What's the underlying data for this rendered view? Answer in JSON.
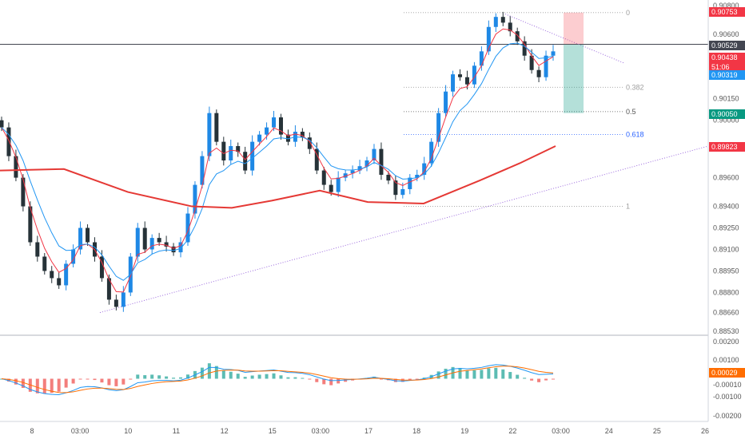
{
  "chart_data": {
    "type": "candlestick",
    "symbol_pair_hint": "",
    "price_axis": {
      "ticks": [
        "0.90800",
        "0.90600",
        "0.90450",
        "0.90150",
        "0.90000",
        "0.89800",
        "0.89600",
        "0.89400",
        "0.89250",
        "0.89100",
        "0.88950",
        "0.88800",
        "0.88660",
        "0.88530"
      ],
      "range": [
        0.8853,
        0.9081
      ]
    },
    "time_axis": {
      "labels": [
        "8",
        "03:00",
        "10",
        "11",
        "12",
        "15",
        "03:00",
        "17",
        "18",
        "19",
        "22",
        "03:00",
        "24",
        "25",
        "26"
      ]
    },
    "price_tags": [
      {
        "value": "0.90753",
        "color": "#f23645"
      },
      {
        "value": "0.90529",
        "color": "#434651"
      },
      {
        "value": "0.90438",
        "color": "#f23645"
      },
      {
        "value": "51:06",
        "color": "#f23645"
      },
      {
        "value": "0.90319",
        "color": "#2196f3"
      },
      {
        "value": "0.90050",
        "color": "#089981"
      },
      {
        "value": "0.89823",
        "color": "#f23645"
      }
    ],
    "fib_levels": [
      {
        "label": "0",
        "price": 0.9075,
        "color": "#9e9e9e"
      },
      {
        "label": "0.382",
        "price": 0.9023,
        "color": "#9e9e9e"
      },
      {
        "label": "0.5",
        "price": 0.9006,
        "color": "#555555"
      },
      {
        "label": "0.618",
        "price": 0.899,
        "color": "#2962ff"
      },
      {
        "label": "1",
        "price": 0.894,
        "color": "#9e9e9e"
      }
    ],
    "horizontal_line": 0.90529,
    "macd_axis": {
      "ticks": [
        "0.00200",
        "0.00100",
        "-0.00010",
        "-0.00100",
        "-0.00200"
      ],
      "tag": {
        "value": "0.00029",
        "color": "#ff6d00"
      },
      "range": [
        -0.0023,
        0.0023
      ]
    },
    "series": {
      "ema_fast_color": "#f23645",
      "ema_mid_color": "#2196f3",
      "ema_slow_color": "#e53935",
      "up_color": "#1e88e5",
      "down_color": "#263238",
      "trendline_color": "#9c6ade"
    },
    "close_path": [
      0.8995,
      0.8975,
      0.896,
      0.894,
      0.8915,
      0.8905,
      0.8895,
      0.889,
      0.8885,
      0.89,
      0.891,
      0.8925,
      0.8915,
      0.8905,
      0.889,
      0.8875,
      0.887,
      0.888,
      0.8905,
      0.8925,
      0.891,
      0.8918,
      0.8915,
      0.8912,
      0.8908,
      0.8915,
      0.8935,
      0.8955,
      0.8975,
      0.9005,
      0.8985,
      0.8972,
      0.8982,
      0.8978,
      0.8965,
      0.8985,
      0.899,
      0.8995,
      0.9002,
      0.899,
      0.8985,
      0.8992,
      0.8988,
      0.898,
      0.8965,
      0.8955,
      0.895,
      0.896,
      0.8963,
      0.8965,
      0.8968,
      0.8972,
      0.898,
      0.8962,
      0.8958,
      0.8948,
      0.8952,
      0.896,
      0.8962,
      0.897,
      0.8985,
      0.9005,
      0.902,
      0.9032,
      0.903,
      0.9025,
      0.9038,
      0.9048,
      0.9065,
      0.9072,
      0.9068,
      0.9062,
      0.9055,
      0.9045,
      0.9035,
      0.903,
      0.9045,
      0.9048
    ]
  }
}
